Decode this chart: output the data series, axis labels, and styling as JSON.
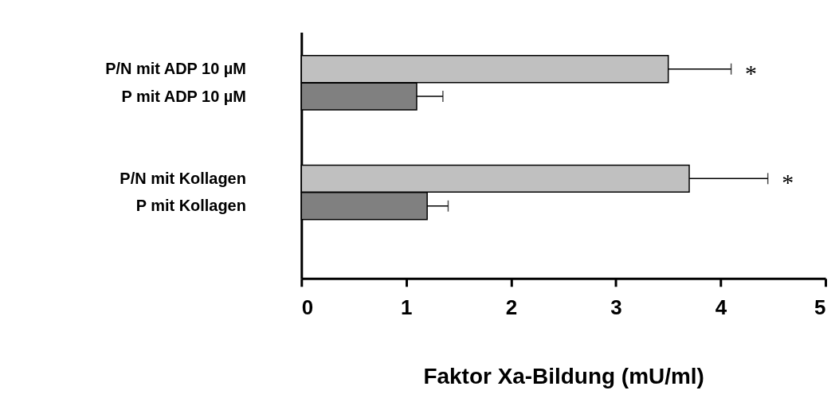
{
  "chart_data": {
    "type": "bar",
    "orientation": "horizontal",
    "categories": [
      "P/N mit ADP 10 µM",
      "P mit ADP 10 µM",
      "P/N mit Kollagen",
      "P mit Kollagen"
    ],
    "values": [
      3.5,
      1.1,
      3.7,
      1.2
    ],
    "colors": [
      "#c0c0c0",
      "#808080",
      "#c0c0c0",
      "#808080"
    ],
    "errors": [
      0.6,
      0.25,
      0.75,
      0.2
    ],
    "xlim": [
      0,
      5
    ],
    "xticks": [
      0,
      1,
      2,
      3,
      4,
      5
    ],
    "xlabel": "Faktor Xa-Bildung (mU/ml)",
    "annotations": [
      "*",
      "*"
    ],
    "grid": false
  }
}
